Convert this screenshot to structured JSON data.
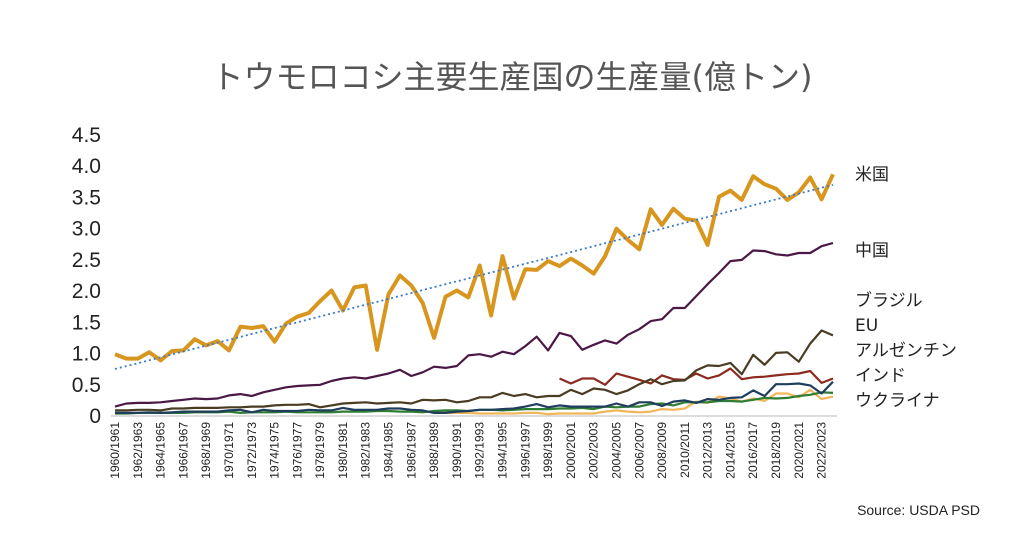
{
  "chart_data": {
    "type": "line",
    "title": "トウモロコシ主要生産国の生産量(億トン)",
    "source": "Source: USDA PSD",
    "categories": [
      "1960/1961",
      null,
      "1962/1963",
      null,
      "1964/1965",
      null,
      "1966/1967",
      null,
      "1968/1969",
      null,
      "1970/1971",
      null,
      "1972/1973",
      null,
      "1974/1975",
      null,
      "1976/1977",
      null,
      "1978/1979",
      null,
      "1980/1981",
      null,
      "1982/1983",
      null,
      "1984/1985",
      null,
      "1986/1987",
      null,
      "1988/1989",
      null,
      "1990/1991",
      null,
      "1992/1993",
      null,
      "1994/1995",
      null,
      "1996/1997",
      null,
      "1998/1999",
      null,
      "2000/2001",
      null,
      "2002/2003",
      null,
      "2004/2005",
      null,
      "2006/2007",
      null,
      "2008/2009",
      null,
      "2010/2011",
      null,
      "2012/2013",
      null,
      "2014/2015",
      null,
      "2016/2017",
      null,
      "2018/2019",
      null,
      "2020/2021",
      null,
      "2022/2023",
      null
    ],
    "ylim": [
      0,
      4.5
    ],
    "yticks": [
      0,
      0.5,
      {
        "value": 1,
        "label": "1.0"
      },
      1.5,
      {
        "value": 2,
        "label": "2.0"
      },
      2.5,
      {
        "value": 3,
        "label": "3.0"
      },
      3.5,
      {
        "value": 4,
        "label": "4.0"
      },
      4.5
    ],
    "grid": false,
    "trendline": true,
    "series": [
      {
        "name": "米国",
        "color": "#D8961E",
        "values": [
          0.99,
          0.92,
          0.92,
          1.02,
          0.89,
          1.04,
          1.05,
          1.23,
          1.13,
          1.2,
          1.05,
          1.43,
          1.41,
          1.44,
          1.19,
          1.48,
          1.59,
          1.65,
          1.84,
          2.01,
          1.69,
          2.06,
          2.09,
          1.06,
          1.95,
          2.25,
          2.09,
          1.81,
          1.25,
          1.91,
          2.01,
          1.9,
          2.41,
          1.61,
          2.56,
          1.88,
          2.35,
          2.34,
          2.48,
          2.4,
          2.52,
          2.41,
          2.28,
          2.56,
          3.0,
          2.82,
          2.67,
          3.31,
          3.06,
          3.32,
          3.16,
          3.13,
          2.74,
          3.51,
          3.61,
          3.46,
          3.84,
          3.71,
          3.64,
          3.46,
          3.58,
          3.82,
          3.47,
          3.87
        ]
      },
      {
        "name": "中国",
        "color": "#4B1845",
        "values": [
          0.15,
          0.2,
          0.21,
          0.21,
          0.22,
          0.24,
          0.26,
          0.28,
          0.27,
          0.28,
          0.33,
          0.35,
          0.32,
          0.38,
          0.42,
          0.46,
          0.48,
          0.49,
          0.5,
          0.56,
          0.6,
          0.62,
          0.6,
          0.64,
          0.68,
          0.74,
          0.64,
          0.7,
          0.79,
          0.77,
          0.8,
          0.97,
          0.99,
          0.95,
          1.03,
          0.99,
          1.12,
          1.27,
          1.05,
          1.33,
          1.28,
          1.06,
          1.14,
          1.21,
          1.16,
          1.3,
          1.39,
          1.52,
          1.55,
          1.73,
          1.73,
          1.92,
          2.11,
          2.29,
          2.48,
          2.5,
          2.65,
          2.64,
          2.59,
          2.57,
          2.61,
          2.61,
          2.72,
          2.77
        ]
      },
      {
        "name": "ブラジル",
        "color": "#4A3C22",
        "values": [
          0.09,
          0.09,
          0.1,
          0.1,
          0.09,
          0.12,
          0.12,
          0.13,
          0.13,
          0.13,
          0.14,
          0.14,
          0.15,
          0.15,
          0.17,
          0.18,
          0.18,
          0.19,
          0.14,
          0.17,
          0.2,
          0.21,
          0.22,
          0.2,
          0.21,
          0.22,
          0.2,
          0.26,
          0.25,
          0.26,
          0.22,
          0.24,
          0.3,
          0.3,
          0.37,
          0.32,
          0.35,
          0.3,
          0.32,
          0.32,
          0.42,
          0.35,
          0.44,
          0.42,
          0.35,
          0.41,
          0.51,
          0.59,
          0.51,
          0.56,
          0.57,
          0.73,
          0.81,
          0.8,
          0.85,
          0.67,
          0.98,
          0.82,
          1.01,
          1.02,
          0.87,
          1.16,
          1.37,
          1.29
        ]
      },
      {
        "name": "EU",
        "color": "#8B2A1E",
        "values": [
          null,
          null,
          null,
          null,
          null,
          null,
          null,
          null,
          null,
          null,
          null,
          null,
          null,
          null,
          null,
          null,
          null,
          null,
          null,
          null,
          null,
          null,
          null,
          null,
          null,
          null,
          null,
          null,
          null,
          null,
          null,
          null,
          null,
          null,
          null,
          null,
          null,
          null,
          null,
          0.6,
          0.52,
          0.6,
          0.6,
          0.5,
          0.68,
          0.63,
          0.58,
          0.52,
          0.65,
          0.59,
          0.58,
          0.68,
          0.6,
          0.65,
          0.76,
          0.59,
          0.62,
          0.63,
          0.65,
          0.67,
          0.68,
          0.72,
          0.53,
          0.6
        ]
      },
      {
        "name": "アルゼンチン",
        "color": "#1F3D5C",
        "values": [
          0.05,
          0.05,
          0.05,
          0.06,
          0.05,
          0.06,
          0.07,
          0.07,
          0.07,
          0.07,
          0.09,
          0.1,
          0.06,
          0.1,
          0.08,
          0.08,
          0.08,
          0.1,
          0.09,
          0.09,
          0.13,
          0.1,
          0.1,
          0.1,
          0.12,
          0.12,
          0.1,
          0.09,
          0.05,
          0.05,
          0.07,
          0.08,
          0.1,
          0.1,
          0.11,
          0.12,
          0.15,
          0.19,
          0.14,
          0.17,
          0.15,
          0.15,
          0.15,
          0.15,
          0.2,
          0.15,
          0.22,
          0.22,
          0.16,
          0.23,
          0.25,
          0.21,
          0.27,
          0.26,
          0.29,
          0.3,
          0.41,
          0.32,
          0.51,
          0.51,
          0.52,
          0.49,
          0.36,
          0.55
        ]
      },
      {
        "name": "インド",
        "color": "#2E7D32",
        "values": [
          0.04,
          0.04,
          0.05,
          0.05,
          0.05,
          0.05,
          0.05,
          0.06,
          0.06,
          0.06,
          0.07,
          0.05,
          0.06,
          0.06,
          0.06,
          0.07,
          0.06,
          0.06,
          0.06,
          0.06,
          0.07,
          0.07,
          0.07,
          0.08,
          0.08,
          0.07,
          0.07,
          0.06,
          0.08,
          0.09,
          0.09,
          0.08,
          0.1,
          0.1,
          0.09,
          0.1,
          0.11,
          0.11,
          0.11,
          0.12,
          0.12,
          0.13,
          0.11,
          0.15,
          0.14,
          0.15,
          0.15,
          0.19,
          0.2,
          0.17,
          0.22,
          0.22,
          0.22,
          0.24,
          0.24,
          0.23,
          0.26,
          0.29,
          0.28,
          0.29,
          0.32,
          0.34,
          0.38,
          0.37
        ]
      },
      {
        "name": "ウクライナ",
        "color": "#F2B65A",
        "values": [
          null,
          null,
          null,
          null,
          null,
          null,
          null,
          null,
          null,
          null,
          null,
          null,
          null,
          null,
          null,
          null,
          null,
          null,
          null,
          null,
          null,
          null,
          null,
          null,
          null,
          null,
          null,
          null,
          0.06,
          0.05,
          0.05,
          0.05,
          0.04,
          0.04,
          0.04,
          0.04,
          0.05,
          0.05,
          0.03,
          0.04,
          0.04,
          0.04,
          0.04,
          0.07,
          0.09,
          0.07,
          0.06,
          0.07,
          0.11,
          0.1,
          0.12,
          0.23,
          0.21,
          0.31,
          0.28,
          0.23,
          0.28,
          0.24,
          0.36,
          0.36,
          0.3,
          0.42,
          0.27,
          0.31
        ]
      }
    ]
  }
}
